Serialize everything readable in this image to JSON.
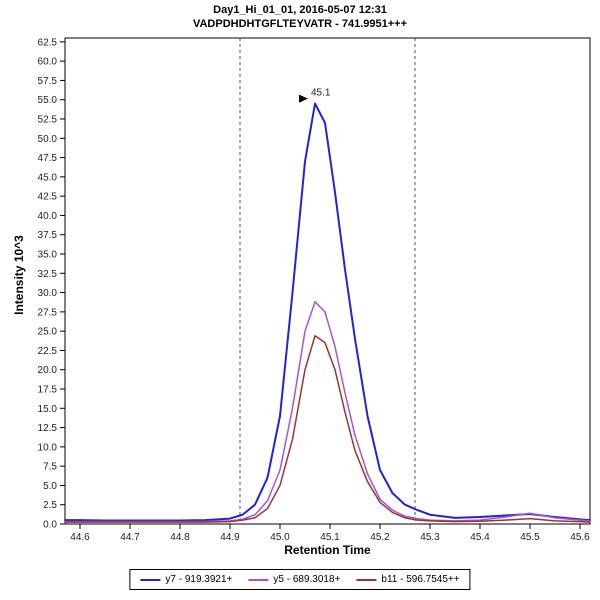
{
  "chart_data": {
    "type": "line",
    "title": "Day1_Hi_01_01, 2016-05-07 12:31",
    "subtitle": "VADPDHDHTGFLTEYVATR - 741.9951+++",
    "xlabel": "Retention Time",
    "ylabel": "Intensity 10^3",
    "xlim": [
      44.57,
      45.62
    ],
    "ylim": [
      0,
      63
    ],
    "x_ticks": [
      44.6,
      44.7,
      44.8,
      44.9,
      45.0,
      45.1,
      45.2,
      45.3,
      45.4,
      45.5,
      45.6
    ],
    "y_ticks": [
      0.0,
      2.5,
      5.0,
      7.5,
      10.0,
      12.5,
      15.0,
      17.5,
      20.0,
      22.5,
      25.0,
      27.5,
      30.0,
      32.5,
      35.0,
      37.5,
      40.0,
      42.5,
      45.0,
      47.5,
      50.0,
      52.5,
      55.0,
      57.5,
      60.0,
      62.5
    ],
    "grid": false,
    "legend_position": "bottom",
    "peak_boundaries": [
      44.92,
      45.27
    ],
    "peak_annotation": {
      "label": "45.1",
      "x": 45.07,
      "y": 54.5
    },
    "x": [
      44.57,
      44.6,
      44.65,
      44.7,
      44.75,
      44.8,
      44.85,
      44.9,
      44.925,
      44.95,
      44.975,
      45.0,
      45.025,
      45.05,
      45.07,
      45.09,
      45.11,
      45.13,
      45.15,
      45.175,
      45.2,
      45.225,
      45.25,
      45.275,
      45.3,
      45.35,
      45.4,
      45.45,
      45.5,
      45.55,
      45.6,
      45.62
    ],
    "series": [
      {
        "name": "y7 - 919.3921+",
        "color": "#2222dd",
        "width": 2,
        "values": [
          0.5,
          0.5,
          0.45,
          0.45,
          0.45,
          0.45,
          0.5,
          0.7,
          1.2,
          2.5,
          6,
          14,
          30,
          47,
          54.5,
          52,
          43,
          33,
          24,
          14,
          7,
          4,
          2.5,
          1.8,
          1.2,
          0.8,
          0.9,
          1.1,
          1.3,
          0.9,
          0.6,
          0.5
        ]
      },
      {
        "name": "y5 - 689.3018+",
        "color": "#a855cc",
        "width": 1.5,
        "values": [
          0.3,
          0.3,
          0.3,
          0.3,
          0.3,
          0.3,
          0.3,
          0.4,
          0.6,
          1.2,
          3,
          7,
          15,
          25,
          28.8,
          27.5,
          23,
          17,
          11.5,
          6.5,
          3.2,
          1.8,
          1.0,
          0.7,
          0.5,
          0.4,
          0.5,
          0.9,
          1.4,
          0.8,
          0.5,
          0.4
        ]
      },
      {
        "name": "b11 - 596.7545++",
        "color": "#9b3434",
        "width": 1.5,
        "values": [
          0.25,
          0.25,
          0.25,
          0.25,
          0.25,
          0.25,
          0.25,
          0.3,
          0.5,
          0.8,
          2,
          5,
          11,
          20,
          24.4,
          23.5,
          20,
          14.5,
          9.5,
          5.5,
          2.8,
          1.5,
          0.8,
          0.5,
          0.4,
          0.3,
          0.35,
          0.5,
          0.7,
          0.4,
          0.3,
          0.25
        ]
      }
    ],
    "colors": {
      "plot_border": "#000000",
      "boundary_line": "#555555",
      "tick_label": "#222222",
      "annotation": "#222222"
    }
  }
}
